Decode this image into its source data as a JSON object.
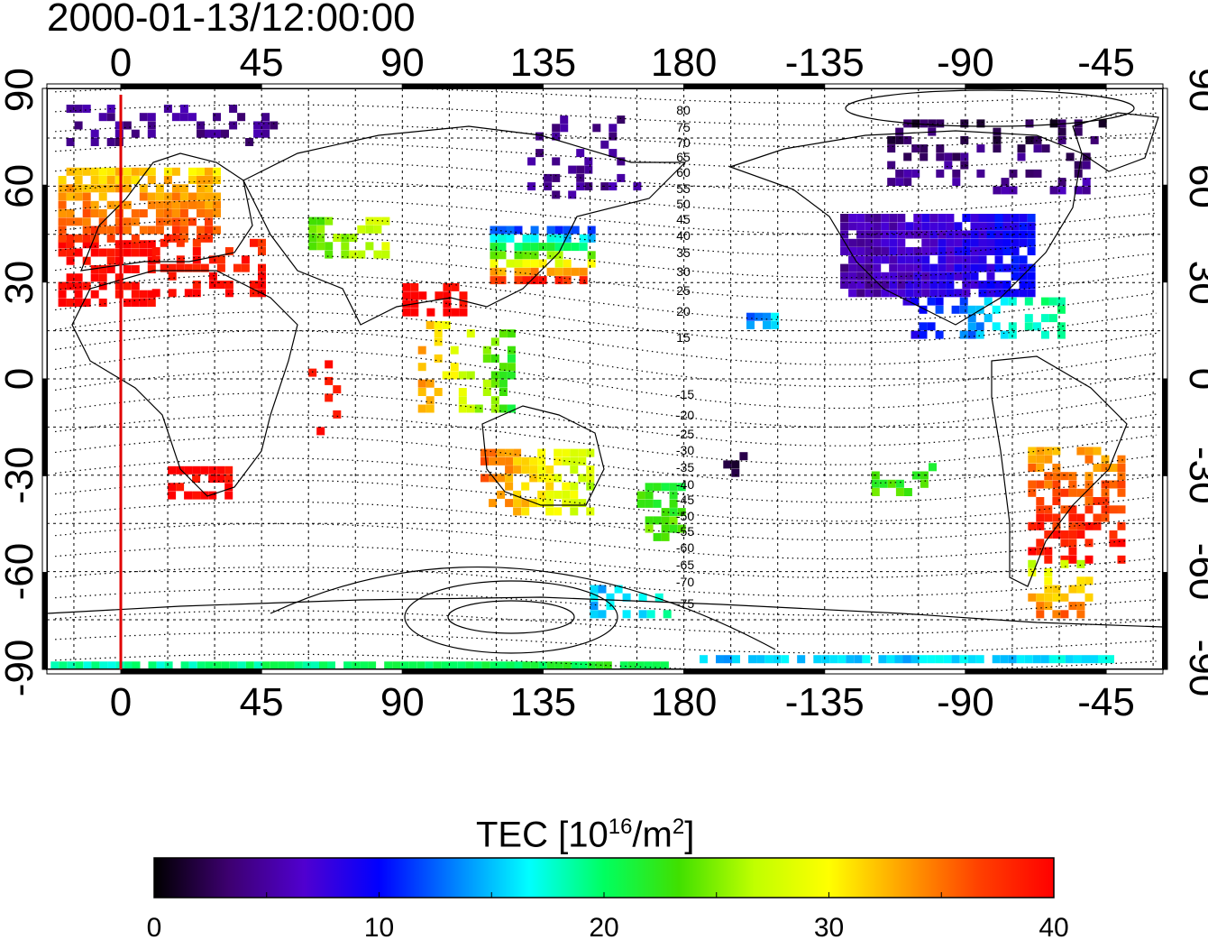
{
  "title": "2000-01-13/12:00:00",
  "colorbar": {
    "label_prefix": "TEC  [10",
    "label_exp1": "16",
    "label_mid": "/m",
    "label_exp2": "2",
    "label_suffix": "]",
    "min": 0,
    "max": 40,
    "ticks": [
      "0",
      "10",
      "20",
      "30",
      "40"
    ],
    "colormap": [
      "#000000",
      "#3d0070",
      "#5000d0",
      "#0000ff",
      "#0080ff",
      "#00ffff",
      "#00ff60",
      "#40e000",
      "#c0ff00",
      "#ffff00",
      "#ffa000",
      "#ff4000",
      "#ff0000"
    ]
  },
  "map": {
    "lon_ticks": [
      "0",
      "45",
      "90",
      "135",
      "180",
      "-135",
      "-90",
      "-45"
    ],
    "lat_ticks": [
      "90",
      "60",
      "30",
      "0",
      "-30",
      "-60",
      "-90"
    ],
    "marker_meridian_lon": 0,
    "marker_color": "#e00000",
    "contour_labels_north": [
      "80",
      "75",
      "70",
      "65",
      "60",
      "55",
      "50",
      "45",
      "40",
      "35",
      "30",
      "25",
      "20",
      "15"
    ],
    "contour_labels_south": [
      "-15",
      "-20",
      "-25",
      "-30",
      "-35",
      "-40",
      "-45",
      "-50",
      "-55",
      "-60",
      "-65",
      "-70",
      "-75"
    ]
  }
}
